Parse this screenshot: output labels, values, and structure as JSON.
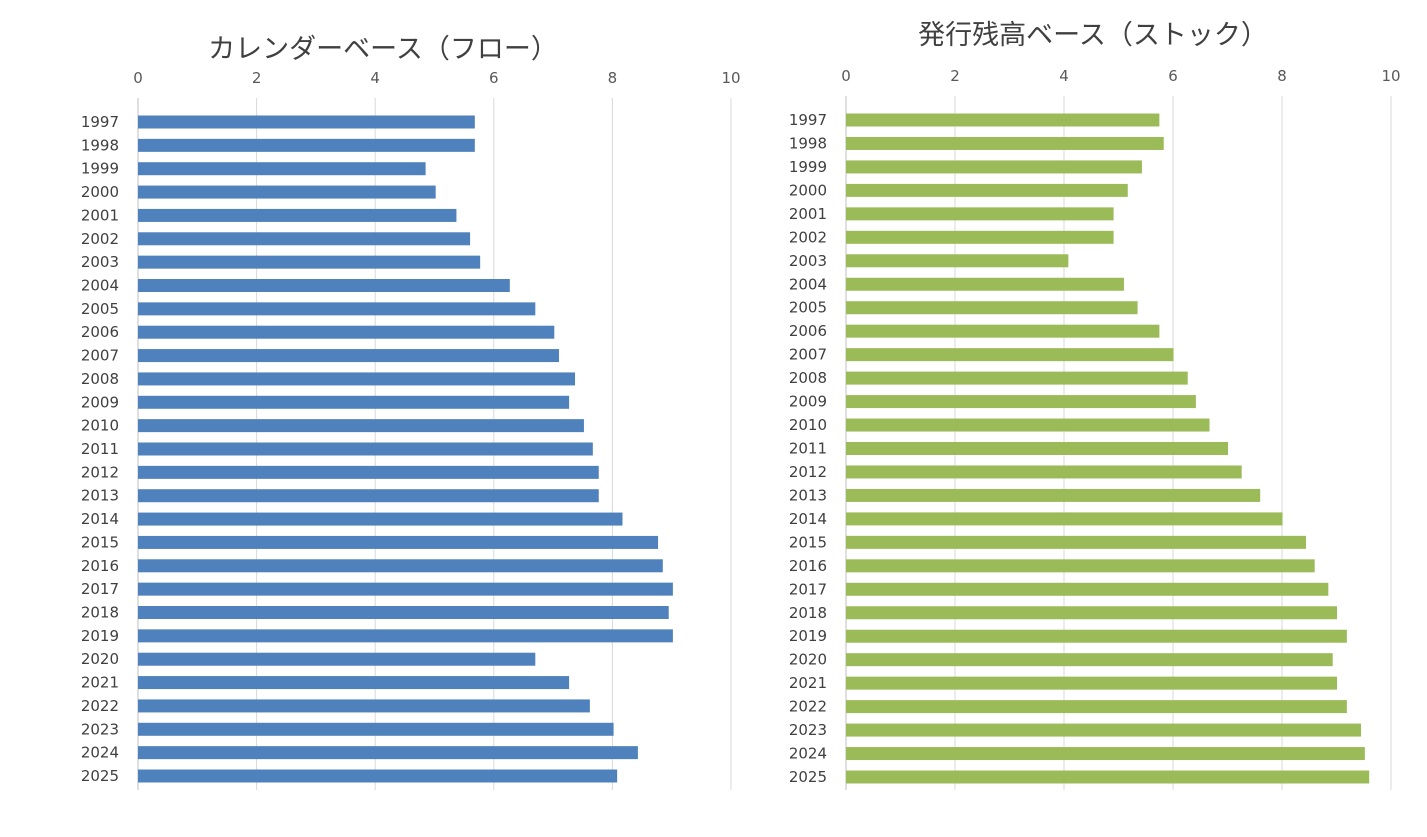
{
  "chart_data": [
    {
      "type": "bar",
      "orientation": "horizontal",
      "title": "カレンダーベース（フロー）",
      "xlim": [
        0,
        10
      ],
      "ticks": [
        "0",
        "2",
        "4",
        "6",
        "8",
        "10"
      ],
      "x_axis_position": "top",
      "grid": true,
      "color": "#4F81BD",
      "categories": [
        "1997",
        "1998",
        "1999",
        "2000",
        "2001",
        "2002",
        "2003",
        "2004",
        "2005",
        "2006",
        "2007",
        "2008",
        "2009",
        "2010",
        "2011",
        "2012",
        "2013",
        "2014",
        "2015",
        "2016",
        "2017",
        "2018",
        "2019",
        "2020",
        "2021",
        "2022",
        "2023",
        "2024",
        "2025"
      ],
      "values": [
        5.68,
        5.68,
        4.85,
        5.02,
        5.37,
        5.6,
        5.77,
        6.27,
        6.7,
        7.02,
        7.1,
        7.37,
        7.27,
        7.52,
        7.67,
        7.77,
        7.77,
        8.17,
        8.77,
        8.85,
        9.02,
        8.95,
        9.02,
        6.7,
        7.27,
        7.62,
        8.02,
        8.43,
        8.08
      ]
    },
    {
      "type": "bar",
      "orientation": "horizontal",
      "title": "発行残高ベース（ストック）",
      "xlim": [
        0,
        10
      ],
      "ticks": [
        "0",
        "2",
        "4",
        "6",
        "8",
        "10"
      ],
      "x_axis_position": "top",
      "grid": true,
      "color": "#9BBB59",
      "categories": [
        "1997",
        "1998",
        "1999",
        "2000",
        "2001",
        "2002",
        "2003",
        "2004",
        "2005",
        "2006",
        "2007",
        "2008",
        "2009",
        "2010",
        "2011",
        "2012",
        "2013",
        "2014",
        "2015",
        "2016",
        "2017",
        "2018",
        "2019",
        "2020",
        "2021",
        "2022",
        "2023",
        "2024",
        "2025"
      ],
      "values": [
        5.75,
        5.83,
        5.43,
        5.17,
        4.91,
        4.91,
        4.08,
        5.1,
        5.35,
        5.75,
        6.01,
        6.27,
        6.42,
        6.67,
        7.01,
        7.26,
        7.6,
        8.01,
        8.44,
        8.6,
        8.85,
        9.01,
        9.19,
        8.93,
        9.01,
        9.19,
        9.45,
        9.52,
        9.6
      ]
    }
  ]
}
